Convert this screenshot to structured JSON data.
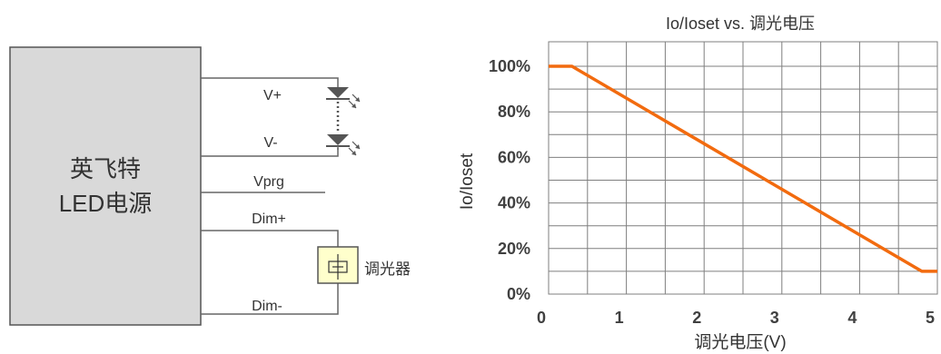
{
  "diagram": {
    "driver": {
      "line1": "英飞特",
      "line2": "LED电源"
    },
    "pins": {
      "vplus": "V+",
      "vminus": "V-",
      "vprg": "Vprg",
      "dimplus": "Dim+",
      "dimminus": "Dim-"
    },
    "dimmer_label": "调光器",
    "colors": {
      "box_fill": "#d9d9d9",
      "dimmer_fill": "#ffffcc",
      "led": "#555555"
    }
  },
  "chart_data": {
    "type": "line",
    "title": "Io/Ioset vs. 调光电压",
    "xlabel": "调光电压(V)",
    "ylabel": "Io/Ioset",
    "x_ticks": [
      "0",
      "1",
      "2",
      "3",
      "4",
      "5"
    ],
    "y_ticks": [
      "0%",
      "20%",
      "40%",
      "60%",
      "80%",
      "100%"
    ],
    "xlim": [
      0,
      5
    ],
    "ylim": [
      0,
      100
    ],
    "grid": true,
    "series": [
      {
        "color": "#f26b0f",
        "x": [
          0,
          0.3,
          4.8,
          5
        ],
        "y": [
          100,
          100,
          10,
          10
        ]
      }
    ]
  }
}
